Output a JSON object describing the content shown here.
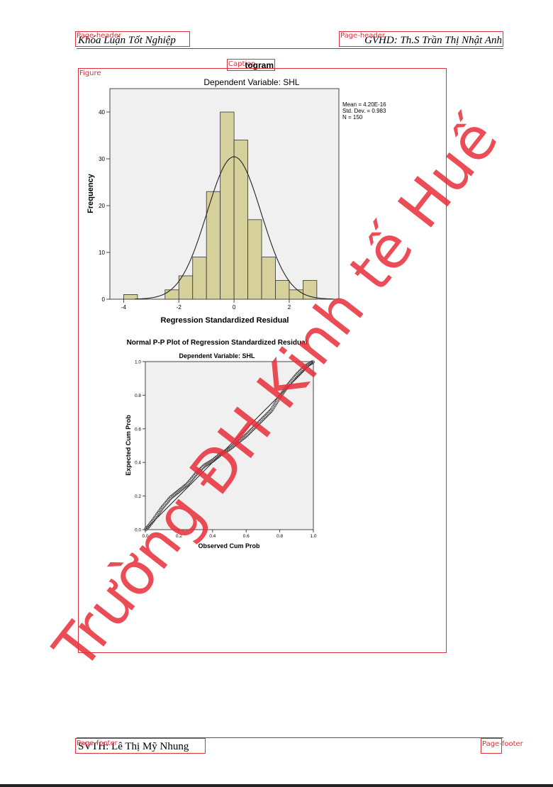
{
  "header": {
    "left_text": "Khóa Luận Tốt Nghiệp",
    "right_text": "GVHD: Th.S Trần Thị Nhật Anh"
  },
  "footer": {
    "left_text": "SVTH: Lê Thị Mỹ Nhung",
    "page_number": ""
  },
  "caption": "Histogram",
  "watermark": "Trường ĐH Kinh tế Huế",
  "layout_tags": {
    "page_header": "Page-header",
    "page_footer": "Page-footer",
    "caption": "Caption",
    "figure": "Figure"
  },
  "chart_data": [
    {
      "type": "bar",
      "title": "Dependent Variable: SHL",
      "xlabel": "Regression Standardized Residual",
      "ylabel": "Frequency",
      "xlim": [
        -4.5,
        3.8
      ],
      "ylim": [
        0,
        45
      ],
      "x_ticks": [
        "-4",
        "-2",
        "0",
        "2"
      ],
      "y_ticks": [
        "0",
        "10",
        "20",
        "30",
        "40"
      ],
      "bin_width": 0.5,
      "bins": [
        {
          "x0": -4.0,
          "count": 1
        },
        {
          "x0": -2.5,
          "count": 2
        },
        {
          "x0": -2.0,
          "count": 5
        },
        {
          "x0": -1.5,
          "count": 9
        },
        {
          "x0": -1.0,
          "count": 23
        },
        {
          "x0": -0.5,
          "count": 40
        },
        {
          "x0": 0.0,
          "count": 34
        },
        {
          "x0": 0.5,
          "count": 17
        },
        {
          "x0": 1.0,
          "count": 9
        },
        {
          "x0": 1.5,
          "count": 4
        },
        {
          "x0": 2.0,
          "count": 2
        },
        {
          "x0": 2.5,
          "count": 4
        }
      ],
      "stats": [
        "Mean = 4.20E-16",
        "Std. Dev. = 0.983",
        "N = 150"
      ],
      "normal_curve": {
        "mean": 0,
        "sd": 0.983,
        "n": 150
      },
      "bar_color": "#d6d09a",
      "plot_background": "#f0f0f0"
    },
    {
      "type": "scatter",
      "title": "Normal P-P Plot of Regression Standardized Residual",
      "subtitle": "Dependent Variable: SHL",
      "xlabel": "Observed Cum Prob",
      "ylabel": "Expected Cum Prob",
      "xlim": [
        0,
        1
      ],
      "ylim": [
        0,
        1
      ],
      "x_ticks": [
        "0.0",
        "0.2",
        "0.4",
        "0.6",
        "0.8",
        "1.0"
      ],
      "y_ticks": [
        "0.0",
        "0.2",
        "0.4",
        "0.6",
        "0.8",
        "1.0"
      ],
      "n_points": 150,
      "reference_line": [
        [
          0,
          0
        ],
        [
          1,
          1
        ]
      ],
      "curve_points": [
        [
          0.0,
          0.0
        ],
        [
          0.02,
          0.02
        ],
        [
          0.05,
          0.06
        ],
        [
          0.1,
          0.13
        ],
        [
          0.15,
          0.19
        ],
        [
          0.2,
          0.23
        ],
        [
          0.25,
          0.27
        ],
        [
          0.3,
          0.33
        ],
        [
          0.35,
          0.38
        ],
        [
          0.4,
          0.41
        ],
        [
          0.45,
          0.45
        ],
        [
          0.5,
          0.48
        ],
        [
          0.55,
          0.52
        ],
        [
          0.6,
          0.56
        ],
        [
          0.65,
          0.61
        ],
        [
          0.7,
          0.66
        ],
        [
          0.75,
          0.71
        ],
        [
          0.8,
          0.79
        ],
        [
          0.85,
          0.86
        ],
        [
          0.9,
          0.92
        ],
        [
          0.95,
          0.97
        ],
        [
          1.0,
          1.0
        ]
      ],
      "plot_background": "#f0f0f0"
    }
  ]
}
